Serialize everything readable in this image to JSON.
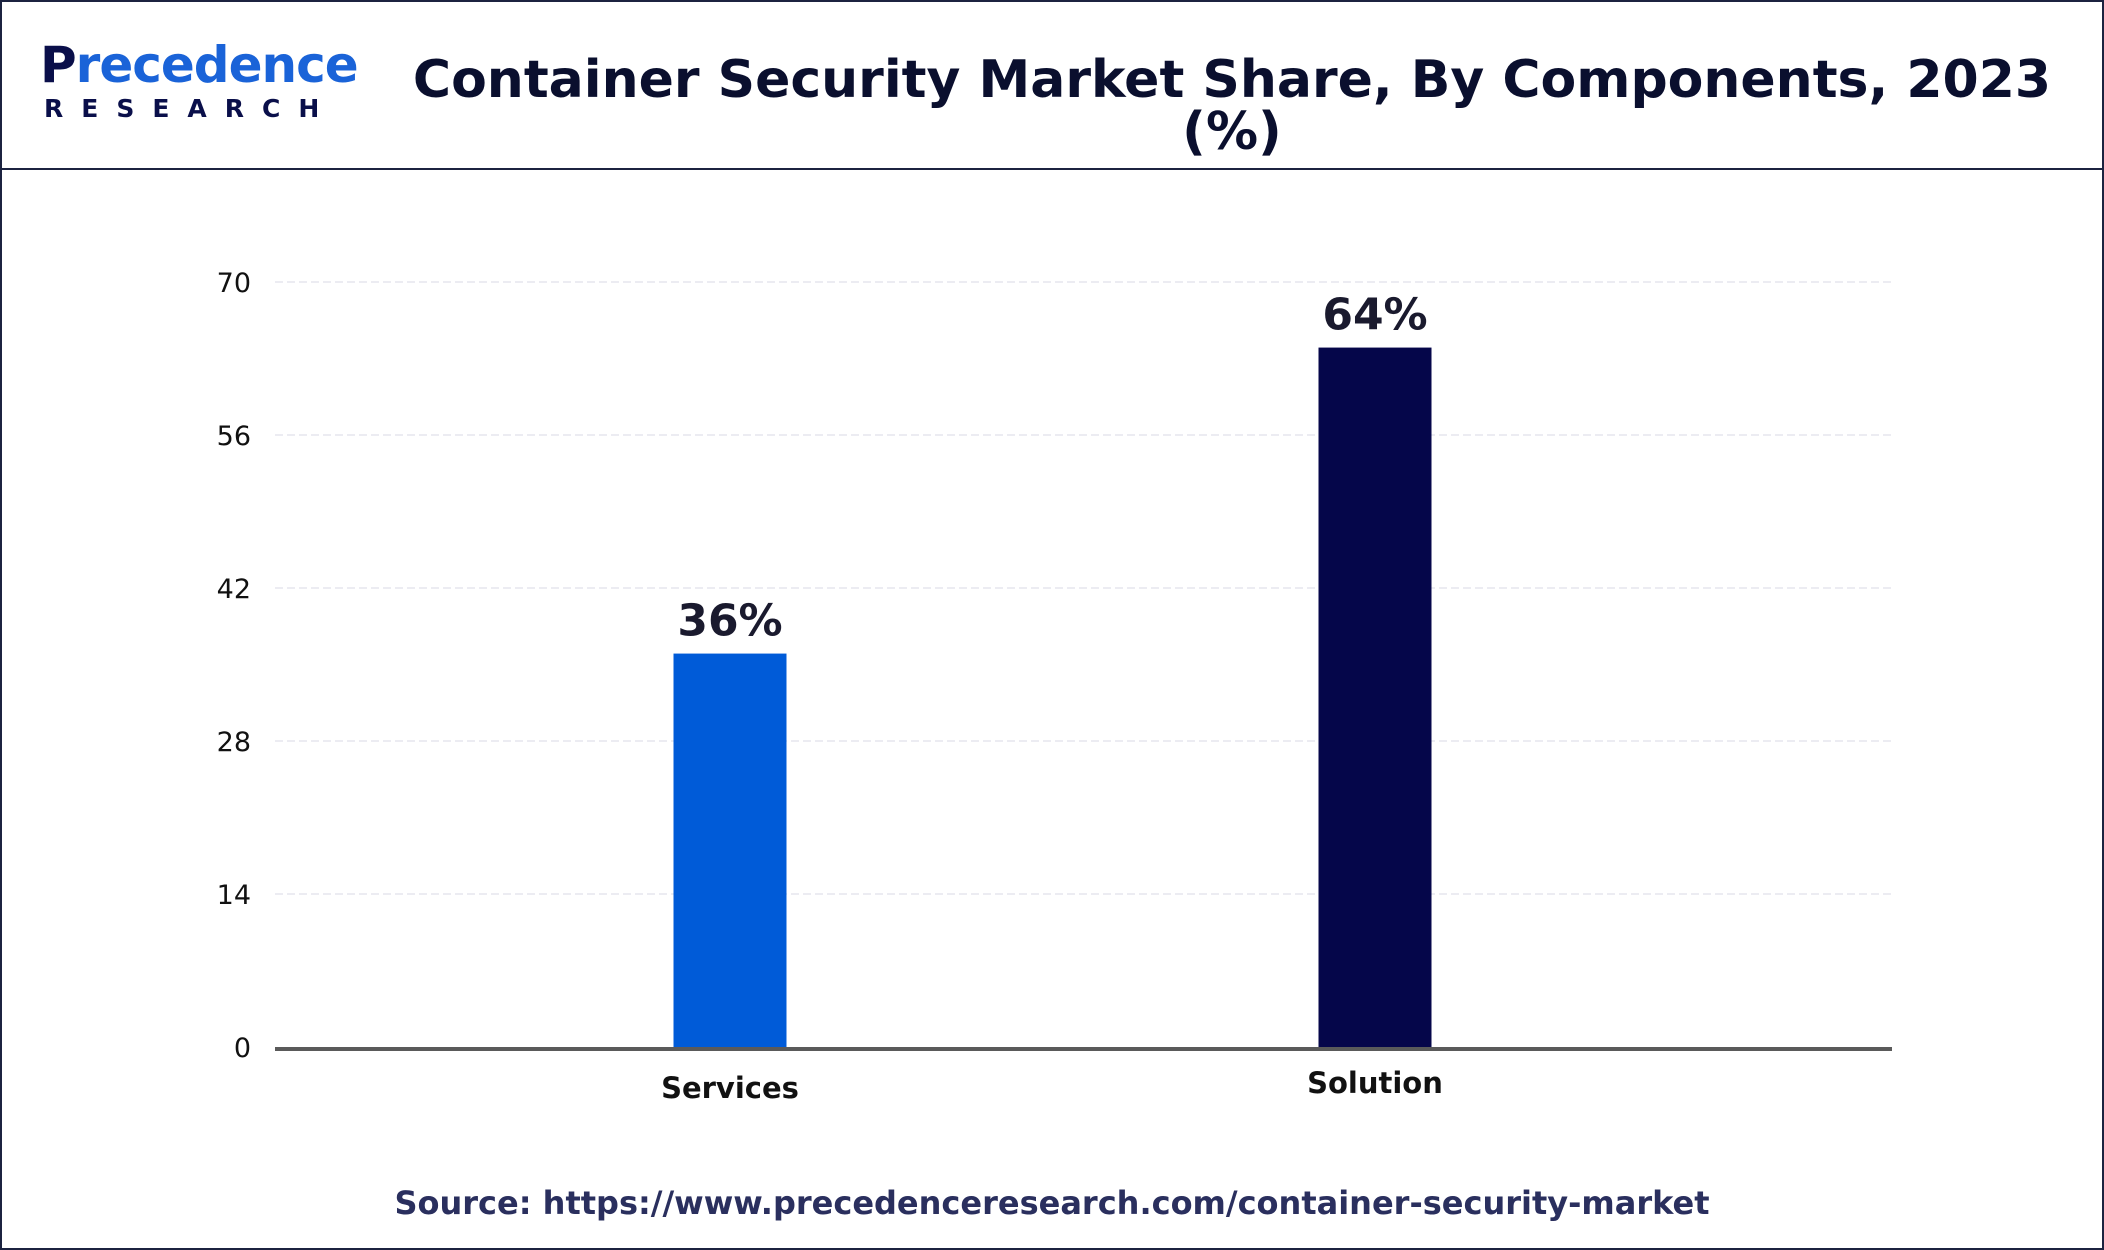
{
  "header": {
    "logo_main_first": "P",
    "logo_main_rest": "recedence",
    "logo_sub": "RESEARCH",
    "title": "Container Security Market Share, By Components, 2023 (%)"
  },
  "source_text": "Source: https://www.precedenceresearch.com/container-security-market",
  "chart_data": {
    "type": "bar",
    "title": "Container Security Market Share, By Components, 2023 (%)",
    "categories": [
      "Services",
      "Solution"
    ],
    "values": [
      36,
      64
    ],
    "data_labels": [
      "36%",
      "64%"
    ],
    "colors": [
      "#005bd8",
      "#05064a"
    ],
    "ylim": [
      0,
      70
    ],
    "yticks": [
      0,
      14,
      28,
      42,
      56,
      70
    ],
    "xlabel": "",
    "ylabel": "",
    "grid": true,
    "legend": "none"
  }
}
